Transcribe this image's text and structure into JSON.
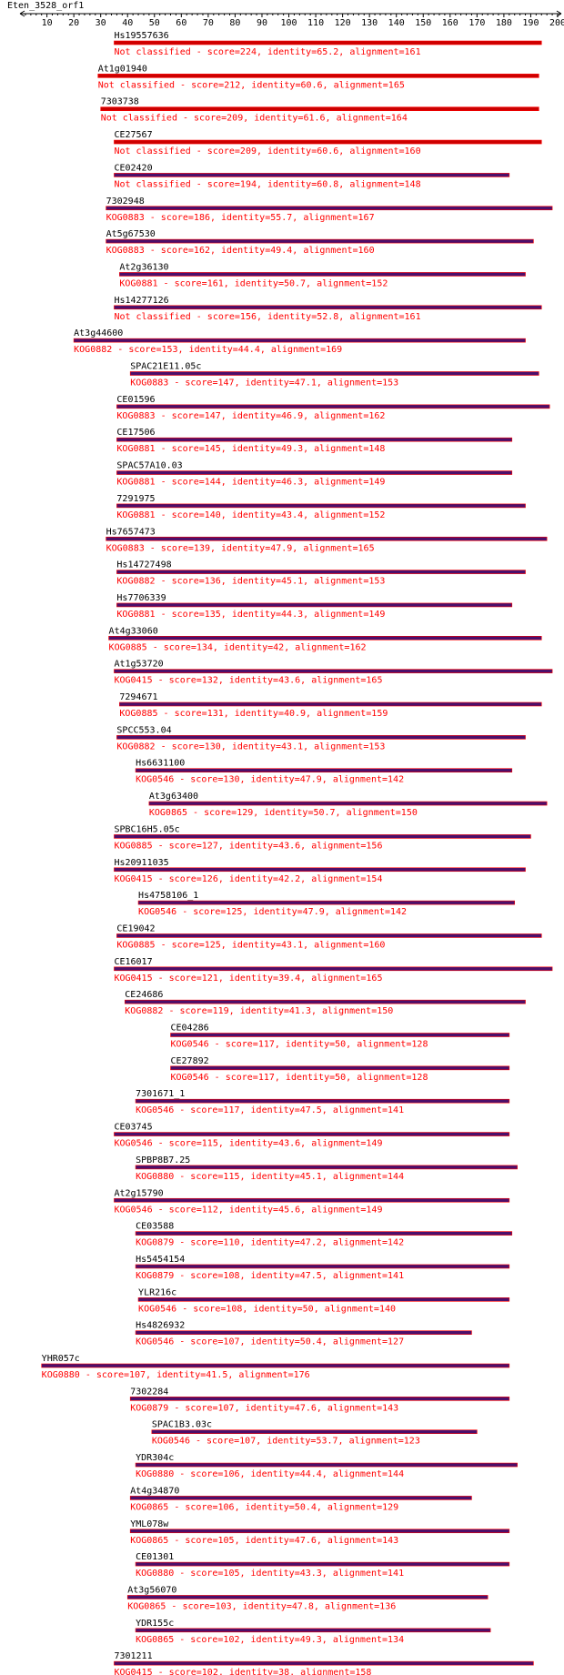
{
  "query": {
    "name": "Eten_3528_orf1",
    "axis_min": 1,
    "axis_max": 200,
    "ticks": [
      10,
      20,
      30,
      40,
      50,
      60,
      70,
      80,
      90,
      100,
      110,
      120,
      130,
      140,
      150,
      160,
      170,
      180,
      190,
      200
    ]
  },
  "colors": {
    "text": "#000000",
    "annotation_text": "#ff0000",
    "bar_red": "#cc0000",
    "bar_purple": "#4b0f6b",
    "bar_outline": "#ff0000",
    "axis": "#000000"
  },
  "hits": [
    {
      "id": "Hs19557636",
      "start": 35,
      "end": 194,
      "bar_color": "red",
      "annotation": "Not classified - score=224, identity=65.2, alignment=161"
    },
    {
      "id": "At1g01940",
      "start": 29,
      "end": 193,
      "bar_color": "red",
      "annotation": "Not classified - score=212, identity=60.6, alignment=165"
    },
    {
      "id": "7303738",
      "start": 30,
      "end": 193,
      "bar_color": "red",
      "annotation": "Not classified - score=209, identity=61.6, alignment=164"
    },
    {
      "id": "CE27567",
      "start": 35,
      "end": 194,
      "bar_color": "red",
      "annotation": "Not classified - score=209, identity=60.6, alignment=160"
    },
    {
      "id": "CE02420",
      "start": 35,
      "end": 182,
      "bar_color": "purple",
      "annotation": "Not classified - score=194, identity=60.8, alignment=148"
    },
    {
      "id": "7302948",
      "start": 32,
      "end": 198,
      "bar_color": "purple",
      "annotation": "KOG0883 - score=186, identity=55.7, alignment=167"
    },
    {
      "id": "At5g67530",
      "start": 32,
      "end": 191,
      "bar_color": "purple",
      "annotation": "KOG0883 - score=162, identity=49.4, alignment=160"
    },
    {
      "id": "At2g36130",
      "start": 37,
      "end": 188,
      "bar_color": "purple",
      "annotation": "KOG0881 - score=161, identity=50.7, alignment=152"
    },
    {
      "id": "Hs14277126",
      "start": 35,
      "end": 194,
      "bar_color": "purple",
      "annotation": "Not classified - score=156, identity=52.8, alignment=161"
    },
    {
      "id": "At3g44600",
      "start": 20,
      "end": 188,
      "bar_color": "purple",
      "annotation": "KOG0882 - score=153, identity=44.4, alignment=169"
    },
    {
      "id": "SPAC21E11.05c",
      "start": 41,
      "end": 193,
      "bar_color": "purple",
      "annotation": "KOG0883 - score=147, identity=47.1, alignment=153"
    },
    {
      "id": "CE01596",
      "start": 36,
      "end": 197,
      "bar_color": "purple",
      "annotation": "KOG0883 - score=147, identity=46.9, alignment=162"
    },
    {
      "id": "CE17506",
      "start": 36,
      "end": 183,
      "bar_color": "purple",
      "annotation": "KOG0881 - score=145, identity=49.3, alignment=148"
    },
    {
      "id": "SPAC57A10.03",
      "start": 36,
      "end": 183,
      "bar_color": "purple",
      "annotation": "KOG0881 - score=144, identity=46.3, alignment=149"
    },
    {
      "id": "7291975",
      "start": 36,
      "end": 188,
      "bar_color": "purple",
      "annotation": "KOG0881 - score=140, identity=43.4, alignment=152"
    },
    {
      "id": "Hs7657473",
      "start": 32,
      "end": 196,
      "bar_color": "purple",
      "annotation": "KOG0883 - score=139, identity=47.9, alignment=165"
    },
    {
      "id": "Hs14727498",
      "start": 36,
      "end": 188,
      "bar_color": "purple",
      "annotation": "KOG0882 - score=136, identity=45.1, alignment=153"
    },
    {
      "id": "Hs7706339",
      "start": 36,
      "end": 183,
      "bar_color": "purple",
      "annotation": "KOG0881 - score=135, identity=44.3, alignment=149"
    },
    {
      "id": "At4g33060",
      "start": 33,
      "end": 194,
      "bar_color": "purple",
      "annotation": "KOG0885 - score=134, identity=42, alignment=162"
    },
    {
      "id": "At1g53720",
      "start": 35,
      "end": 198,
      "bar_color": "purple",
      "annotation": "KOG0415 - score=132, identity=43.6, alignment=165"
    },
    {
      "id": "7294671",
      "start": 37,
      "end": 194,
      "bar_color": "purple",
      "annotation": "KOG0885 - score=131, identity=40.9, alignment=159"
    },
    {
      "id": "SPCC553.04",
      "start": 36,
      "end": 188,
      "bar_color": "purple",
      "annotation": "KOG0882 - score=130, identity=43.1, alignment=153"
    },
    {
      "id": "Hs6631100",
      "start": 43,
      "end": 183,
      "bar_color": "purple",
      "annotation": "KOG0546 - score=130, identity=47.9, alignment=142"
    },
    {
      "id": "At3g63400",
      "start": 48,
      "end": 196,
      "bar_color": "purple",
      "annotation": "KOG0865 - score=129, identity=50.7, alignment=150"
    },
    {
      "id": "SPBC16H5.05c",
      "start": 35,
      "end": 190,
      "bar_color": "purple",
      "annotation": "KOG0885 - score=127, identity=43.6, alignment=156"
    },
    {
      "id": "Hs20911035",
      "start": 35,
      "end": 188,
      "bar_color": "purple",
      "annotation": "KOG0415 - score=126, identity=42.2, alignment=154"
    },
    {
      "id": "Hs4758106_1",
      "start": 44,
      "end": 184,
      "bar_color": "purple",
      "annotation": "KOG0546 - score=125, identity=47.9, alignment=142"
    },
    {
      "id": "CE19042",
      "start": 36,
      "end": 194,
      "bar_color": "purple",
      "annotation": "KOG0885 - score=125, identity=43.1, alignment=160"
    },
    {
      "id": "CE16017",
      "start": 35,
      "end": 198,
      "bar_color": "purple",
      "annotation": "KOG0415 - score=121, identity=39.4, alignment=165"
    },
    {
      "id": "CE24686",
      "start": 39,
      "end": 188,
      "bar_color": "purple",
      "annotation": "KOG0882 - score=119, identity=41.3, alignment=150"
    },
    {
      "id": "CE04286",
      "start": 56,
      "end": 182,
      "bar_color": "purple",
      "annotation": "KOG0546 - score=117, identity=50, alignment=128"
    },
    {
      "id": "CE27892",
      "start": 56,
      "end": 182,
      "bar_color": "purple",
      "annotation": "KOG0546 - score=117, identity=50, alignment=128"
    },
    {
      "id": "7301671_1",
      "start": 43,
      "end": 182,
      "bar_color": "purple",
      "annotation": "KOG0546 - score=117, identity=47.5, alignment=141"
    },
    {
      "id": "CE03745",
      "start": 35,
      "end": 182,
      "bar_color": "purple",
      "annotation": "KOG0546 - score=115, identity=43.6, alignment=149"
    },
    {
      "id": "SPBP8B7.25",
      "start": 43,
      "end": 185,
      "bar_color": "purple",
      "annotation": "KOG0880 - score=115, identity=45.1, alignment=144"
    },
    {
      "id": "At2g15790",
      "start": 35,
      "end": 182,
      "bar_color": "purple",
      "annotation": "KOG0546 - score=112, identity=45.6, alignment=149"
    },
    {
      "id": "CE03588",
      "start": 43,
      "end": 183,
      "bar_color": "purple",
      "annotation": "KOG0879 - score=110, identity=47.2, alignment=142"
    },
    {
      "id": "Hs5454154",
      "start": 43,
      "end": 182,
      "bar_color": "purple",
      "annotation": "KOG0879 - score=108, identity=47.5, alignment=141"
    },
    {
      "id": "YLR216c",
      "start": 44,
      "end": 182,
      "bar_color": "purple",
      "annotation": "KOG0546 - score=108, identity=50, alignment=140"
    },
    {
      "id": "Hs4826932",
      "start": 43,
      "end": 168,
      "bar_color": "purple",
      "annotation": "KOG0546 - score=107, identity=50.4, alignment=127"
    },
    {
      "id": "YHR057c",
      "start": 8,
      "end": 182,
      "bar_color": "purple",
      "annotation": "KOG0880 - score=107, identity=41.5, alignment=176"
    },
    {
      "id": "7302284",
      "start": 41,
      "end": 182,
      "bar_color": "purple",
      "annotation": "KOG0879 - score=107, identity=47.6, alignment=143"
    },
    {
      "id": "SPAC1B3.03c",
      "start": 49,
      "end": 170,
      "bar_color": "purple",
      "annotation": "KOG0546 - score=107, identity=53.7, alignment=123"
    },
    {
      "id": "YDR304c",
      "start": 43,
      "end": 185,
      "bar_color": "purple",
      "annotation": "KOG0880 - score=106, identity=44.4, alignment=144"
    },
    {
      "id": "At4g34870",
      "start": 41,
      "end": 168,
      "bar_color": "purple",
      "annotation": "KOG0865 - score=106, identity=50.4, alignment=129"
    },
    {
      "id": "YML078w",
      "start": 41,
      "end": 182,
      "bar_color": "purple",
      "annotation": "KOG0865 - score=105, identity=47.6, alignment=143"
    },
    {
      "id": "CE01301",
      "start": 43,
      "end": 182,
      "bar_color": "purple",
      "annotation": "KOG0880 - score=105, identity=43.3, alignment=141"
    },
    {
      "id": "At3g56070",
      "start": 40,
      "end": 174,
      "bar_color": "purple",
      "annotation": "KOG0865 - score=103, identity=47.8, alignment=136"
    },
    {
      "id": "YDR155c",
      "start": 43,
      "end": 175,
      "bar_color": "purple",
      "annotation": "KOG0865 - score=102, identity=49.3, alignment=134"
    },
    {
      "id": "7301211",
      "start": 35,
      "end": 191,
      "bar_color": "purple",
      "annotation": "KOG0415 - score=102, identity=38, alignment=158"
    }
  ]
}
